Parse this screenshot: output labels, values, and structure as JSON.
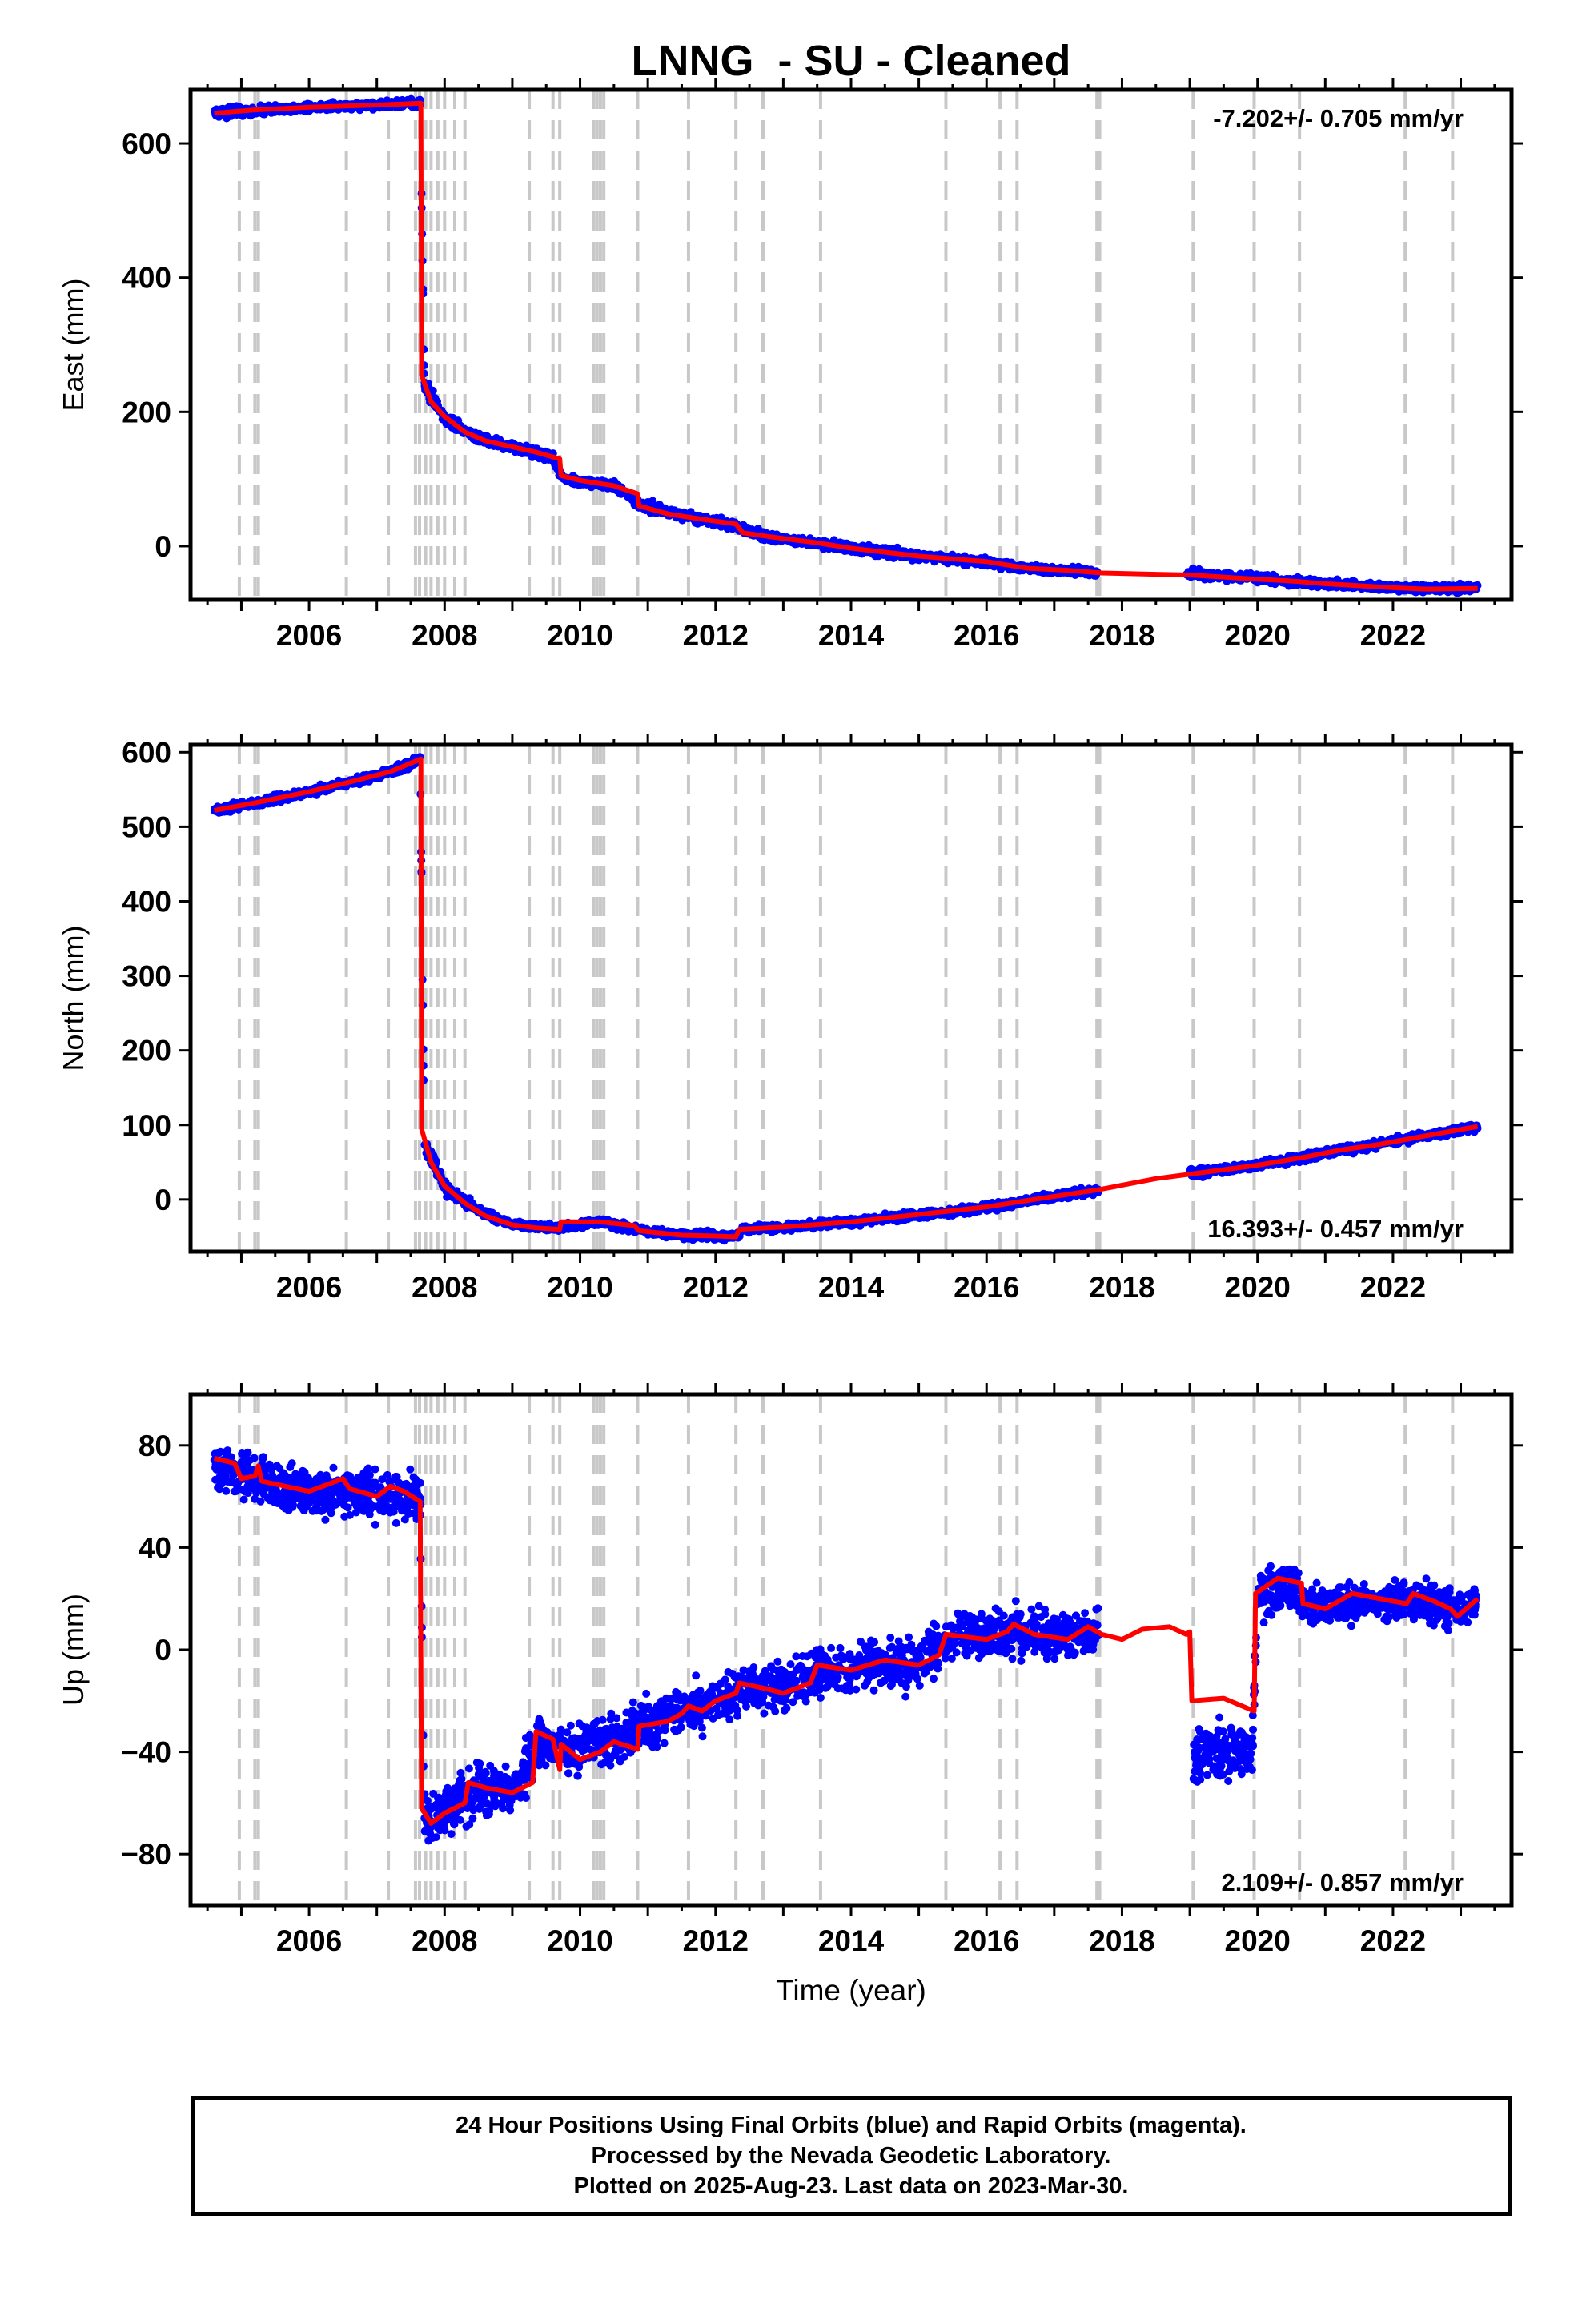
{
  "title": "LNNG  - SU - Cleaned",
  "xlabel": "Time (year)",
  "footer": {
    "line1": "24 Hour Positions Using Final Orbits (blue) and Rapid Orbits (magenta).",
    "line2": "Processed by the Nevada Geodetic Laboratory.",
    "line3": "Plotted on 2025-Aug-23. Last data on 2023-Mar-30."
  },
  "colors": {
    "data": "#0000ff",
    "model": "#ff0000",
    "steps": "#c8c8c8"
  },
  "chart_data": [
    {
      "type": "scatter",
      "ylabel": "East (mm)",
      "rate_label": "-7.202+/- 0.705 mm/yr",
      "rate_position": "top-right",
      "xlim": [
        2004.25,
        2023.75
      ],
      "ylim": [
        -80,
        680
      ],
      "yticks": [
        0,
        200,
        400,
        600
      ],
      "xticks": [
        2006,
        2008,
        2010,
        2012,
        2014,
        2016,
        2018,
        2020,
        2022
      ],
      "model_line": [
        [
          2004.6,
          645
        ],
        [
          2005.2,
          650
        ],
        [
          2006.0,
          654
        ],
        [
          2006.6,
          656
        ],
        [
          2007.2,
          658
        ],
        [
          2007.65,
          660
        ],
        [
          2007.66,
          255
        ],
        [
          2007.8,
          215
        ],
        [
          2008.0,
          193
        ],
        [
          2008.3,
          170
        ],
        [
          2008.6,
          157
        ],
        [
          2009.0,
          148
        ],
        [
          2009.35,
          140
        ],
        [
          2009.7,
          130
        ],
        [
          2009.72,
          105
        ],
        [
          2010.0,
          98
        ],
        [
          2010.5,
          90
        ],
        [
          2010.85,
          78
        ],
        [
          2010.87,
          60
        ],
        [
          2011.3,
          48
        ],
        [
          2011.8,
          40
        ],
        [
          2012.3,
          33
        ],
        [
          2012.4,
          20
        ],
        [
          2012.8,
          14
        ],
        [
          2013.5,
          5
        ],
        [
          2014.0,
          -3
        ],
        [
          2015.0,
          -15
        ],
        [
          2016.0,
          -23
        ],
        [
          2016.6,
          -33
        ],
        [
          2017.2,
          -36
        ],
        [
          2017.7,
          -40
        ],
        [
          2018.5,
          -42
        ],
        [
          2019.0,
          -43
        ],
        [
          2019.8,
          -48
        ],
        [
          2020.5,
          -52
        ],
        [
          2021.0,
          -56
        ],
        [
          2021.5,
          -59
        ],
        [
          2022.0,
          -62
        ],
        [
          2022.5,
          -64
        ],
        [
          2023.25,
          -63
        ]
      ],
      "data_envelope": [
        [
          2004.6,
          645,
          8
        ],
        [
          2005.3,
          650,
          6
        ],
        [
          2006.0,
          654,
          5
        ],
        [
          2007.0,
          657,
          5
        ],
        [
          2007.64,
          660,
          6
        ],
        [
          2007.7,
          240,
          12
        ],
        [
          2008.0,
          190,
          8
        ],
        [
          2008.5,
          160,
          6
        ],
        [
          2009.0,
          148,
          6
        ],
        [
          2009.6,
          132,
          7
        ],
        [
          2009.75,
          100,
          7
        ],
        [
          2010.5,
          90,
          6
        ],
        [
          2010.9,
          62,
          7
        ],
        [
          2011.5,
          46,
          6
        ],
        [
          2012.3,
          30,
          6
        ],
        [
          2012.8,
          13,
          6
        ],
        [
          2013.5,
          4,
          5
        ],
        [
          2014.0,
          -3,
          7
        ],
        [
          2015.0,
          -15,
          6
        ],
        [
          2016.0,
          -24,
          6
        ],
        [
          2016.6,
          -33,
          5
        ],
        [
          2017.65,
          -40,
          5
        ]
      ],
      "data_envelope2": [
        [
          2018.95,
          -40,
          7
        ],
        [
          2019.5,
          -45,
          6
        ],
        [
          2020.0,
          -48,
          6
        ],
        [
          2020.5,
          -53,
          6
        ],
        [
          2021.0,
          -56,
          5
        ],
        [
          2021.5,
          -59,
          5
        ],
        [
          2022.0,
          -62,
          5
        ],
        [
          2022.5,
          -63,
          5
        ],
        [
          2023.25,
          -62,
          6
        ]
      ]
    },
    {
      "type": "scatter",
      "ylabel": "North (mm)",
      "rate_label": "16.393+/- 0.457 mm/yr",
      "rate_position": "bottom-right",
      "xlim": [
        2004.25,
        2023.75
      ],
      "ylim": [
        -70,
        610
      ],
      "yticks": [
        0,
        100,
        200,
        300,
        400,
        500,
        600
      ],
      "xticks": [
        2006,
        2008,
        2010,
        2012,
        2014,
        2016,
        2018,
        2020,
        2022
      ],
      "model_line": [
        [
          2004.6,
          522
        ],
        [
          2005.2,
          532
        ],
        [
          2006.0,
          547
        ],
        [
          2006.6,
          560
        ],
        [
          2007.2,
          574
        ],
        [
          2007.65,
          591
        ],
        [
          2007.66,
          95
        ],
        [
          2007.8,
          50
        ],
        [
          2008.0,
          18
        ],
        [
          2008.3,
          -5
        ],
        [
          2008.6,
          -22
        ],
        [
          2009.0,
          -34
        ],
        [
          2009.35,
          -38
        ],
        [
          2009.7,
          -40
        ],
        [
          2009.72,
          -30
        ],
        [
          2010.3,
          -30
        ],
        [
          2010.8,
          -35
        ],
        [
          2010.87,
          -42
        ],
        [
          2011.5,
          -48
        ],
        [
          2012.0,
          -49
        ],
        [
          2012.3,
          -50
        ],
        [
          2012.35,
          -40
        ],
        [
          2013.0,
          -37
        ],
        [
          2014.0,
          -30
        ],
        [
          2015.0,
          -20
        ],
        [
          2016.0,
          -10
        ],
        [
          2016.7,
          0
        ],
        [
          2017.65,
          13
        ],
        [
          2018.5,
          28
        ],
        [
          2019.5,
          40
        ],
        [
          2020.0,
          46
        ],
        [
          2020.7,
          57
        ],
        [
          2021.2,
          66
        ],
        [
          2021.8,
          74
        ],
        [
          2022.4,
          84
        ],
        [
          2023.25,
          98
        ]
      ],
      "data_envelope": [
        [
          2004.6,
          522,
          5
        ],
        [
          2005.3,
          533,
          5
        ],
        [
          2006.0,
          547,
          5
        ],
        [
          2006.7,
          562,
          5
        ],
        [
          2007.3,
          576,
          5
        ],
        [
          2007.64,
          590,
          6
        ],
        [
          2007.7,
          80,
          15
        ],
        [
          2008.0,
          15,
          8
        ],
        [
          2008.5,
          -15,
          5
        ],
        [
          2009.0,
          -34,
          4
        ],
        [
          2009.7,
          -38,
          5
        ],
        [
          2010.3,
          -30,
          5
        ],
        [
          2011.0,
          -43,
          5
        ],
        [
          2011.6,
          -48,
          5
        ],
        [
          2012.3,
          -50,
          5
        ],
        [
          2012.4,
          -40,
          5
        ],
        [
          2013.0,
          -37,
          5
        ],
        [
          2014.0,
          -30,
          5
        ],
        [
          2015.0,
          -21,
          5
        ],
        [
          2016.0,
          -11,
          5
        ],
        [
          2016.7,
          0,
          5
        ],
        [
          2017.65,
          13,
          5
        ]
      ],
      "data_envelope2": [
        [
          2019.0,
          35,
          6
        ],
        [
          2019.5,
          40,
          5
        ],
        [
          2020.0,
          46,
          5
        ],
        [
          2020.7,
          57,
          5
        ],
        [
          2021.2,
          66,
          5
        ],
        [
          2021.8,
          74,
          5
        ],
        [
          2022.4,
          85,
          5
        ],
        [
          2023.25,
          97,
          5
        ]
      ]
    },
    {
      "type": "scatter",
      "ylabel": "Up (mm)",
      "rate_label": "2.109+/- 0.857 mm/yr",
      "rate_position": "bottom-right",
      "xlim": [
        2004.25,
        2023.75
      ],
      "ylim": [
        -100,
        100
      ],
      "yticks": [
        -80,
        -40,
        0,
        40,
        80
      ],
      "xticks": [
        2006,
        2008,
        2010,
        2012,
        2014,
        2016,
        2018,
        2020,
        2022
      ],
      "model_line": [
        [
          2004.6,
          75
        ],
        [
          2004.9,
          73
        ],
        [
          2005.0,
          67
        ],
        [
          2005.2,
          68
        ],
        [
          2005.25,
          72
        ],
        [
          2005.3,
          66
        ],
        [
          2006.0,
          62
        ],
        [
          2006.5,
          67
        ],
        [
          2006.6,
          63
        ],
        [
          2007.0,
          60
        ],
        [
          2007.2,
          64
        ],
        [
          2007.4,
          62
        ],
        [
          2007.64,
          58
        ],
        [
          2007.66,
          -62
        ],
        [
          2007.8,
          -68
        ],
        [
          2008.0,
          -64
        ],
        [
          2008.3,
          -60
        ],
        [
          2008.35,
          -52
        ],
        [
          2008.6,
          -54
        ],
        [
          2009.0,
          -56
        ],
        [
          2009.3,
          -52
        ],
        [
          2009.35,
          -32
        ],
        [
          2009.6,
          -35
        ],
        [
          2009.7,
          -47
        ],
        [
          2009.72,
          -37
        ],
        [
          2010.0,
          -43
        ],
        [
          2010.3,
          -40
        ],
        [
          2010.5,
          -36
        ],
        [
          2010.85,
          -39
        ],
        [
          2010.87,
          -30
        ],
        [
          2011.3,
          -28
        ],
        [
          2011.5,
          -25
        ],
        [
          2011.6,
          -22
        ],
        [
          2011.8,
          -24
        ],
        [
          2012.0,
          -20
        ],
        [
          2012.3,
          -17
        ],
        [
          2012.35,
          -13
        ],
        [
          2012.7,
          -15
        ],
        [
          2013.0,
          -17
        ],
        [
          2013.4,
          -13
        ],
        [
          2013.5,
          -6
        ],
        [
          2014.0,
          -8
        ],
        [
          2014.5,
          -4
        ],
        [
          2015.0,
          -6
        ],
        [
          2015.3,
          -2
        ],
        [
          2015.4,
          6
        ],
        [
          2016.0,
          4
        ],
        [
          2016.3,
          7
        ],
        [
          2016.4,
          10
        ],
        [
          2016.7,
          6
        ],
        [
          2017.2,
          4
        ],
        [
          2017.5,
          9
        ],
        [
          2017.7,
          6
        ],
        [
          2018.0,
          4
        ],
        [
          2018.3,
          8
        ],
        [
          2018.7,
          9
        ],
        [
          2018.95,
          6
        ],
        [
          2019.0,
          7
        ],
        [
          2019.03,
          -20
        ],
        [
          2019.5,
          -19
        ],
        [
          2019.95,
          -24
        ],
        [
          2019.97,
          22
        ],
        [
          2020.3,
          28
        ],
        [
          2020.65,
          26
        ],
        [
          2020.67,
          18
        ],
        [
          2021.0,
          16
        ],
        [
          2021.4,
          22
        ],
        [
          2021.8,
          20
        ],
        [
          2022.2,
          18
        ],
        [
          2022.3,
          22
        ],
        [
          2022.6,
          19
        ],
        [
          2022.85,
          16
        ],
        [
          2022.95,
          13
        ],
        [
          2023.25,
          20
        ]
      ],
      "data_envelope": [
        [
          2004.6,
          72,
          10
        ],
        [
          2005.3,
          66,
          9
        ],
        [
          2006.0,
          62,
          9
        ],
        [
          2006.7,
          62,
          9
        ],
        [
          2007.3,
          60,
          9
        ],
        [
          2007.64,
          60,
          9
        ],
        [
          2007.7,
          -66,
          10
        ],
        [
          2008.0,
          -63,
          10
        ],
        [
          2008.5,
          -55,
          10
        ],
        [
          2009.0,
          -55,
          10
        ],
        [
          2009.4,
          -36,
          9
        ],
        [
          2009.8,
          -40,
          9
        ],
        [
          2010.3,
          -37,
          9
        ],
        [
          2010.9,
          -30,
          9
        ],
        [
          2011.5,
          -24,
          9
        ],
        [
          2012.0,
          -20,
          9
        ],
        [
          2012.5,
          -14,
          9
        ],
        [
          2013.0,
          -15,
          9
        ],
        [
          2013.5,
          -8,
          9
        ],
        [
          2014.0,
          -8,
          9
        ],
        [
          2014.5,
          -4,
          9
        ],
        [
          2015.0,
          -5,
          9
        ],
        [
          2015.5,
          5,
          9
        ],
        [
          2016.0,
          5,
          9
        ],
        [
          2016.5,
          8,
          9
        ],
        [
          2017.0,
          5,
          9
        ],
        [
          2017.65,
          7,
          8
        ]
      ],
      "data_envelope2": [
        [
          2019.05,
          -42,
          10
        ],
        [
          2019.5,
          -40,
          10
        ],
        [
          2019.92,
          -40,
          10
        ],
        [
          2020.0,
          22,
          9
        ],
        [
          2020.5,
          25,
          8
        ],
        [
          2020.7,
          17,
          7
        ],
        [
          2021.2,
          18,
          7
        ],
        [
          2021.8,
          18,
          7
        ],
        [
          2022.3,
          20,
          7
        ],
        [
          2022.8,
          15,
          7
        ],
        [
          2023.25,
          18,
          6
        ]
      ]
    }
  ],
  "step_lines": [
    2004.97,
    2005.2,
    2005.25,
    2006.55,
    2007.17,
    2007.57,
    2007.63,
    2007.72,
    2007.8,
    2007.9,
    2008.0,
    2008.15,
    2008.3,
    2009.25,
    2009.6,
    2009.7,
    2010.2,
    2010.25,
    2010.3,
    2010.35,
    2010.85,
    2011.6,
    2012.3,
    2012.7,
    2013.55,
    2015.4,
    2016.2,
    2016.45,
    2017.63,
    2017.67,
    2019.05,
    2019.95,
    2020.62,
    2022.18,
    2022.88
  ]
}
